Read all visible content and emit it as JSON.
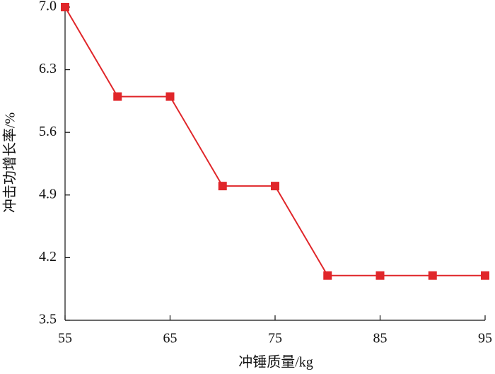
{
  "chart_data": {
    "type": "line",
    "x_label": "冲锤质量/kg",
    "y_label": "冲击功增长率/%",
    "x": [
      55,
      60,
      65,
      70,
      75,
      80,
      85,
      90,
      95
    ],
    "series": [
      {
        "color": "#e0262a",
        "values": [
          7.0,
          6.0,
          6.0,
          5.0,
          5.0,
          4.0,
          4.0,
          4.0,
          4.0
        ]
      }
    ],
    "xlim": [
      55,
      95
    ],
    "xticks": [
      55,
      65,
      75,
      85,
      95
    ],
    "ylim": [
      3.5,
      7.0
    ],
    "yticks": [
      3.5,
      4.2,
      4.9,
      5.6,
      6.3,
      {
        "value": 7.0,
        "label": "7.0"
      }
    ],
    "grid": false
  }
}
